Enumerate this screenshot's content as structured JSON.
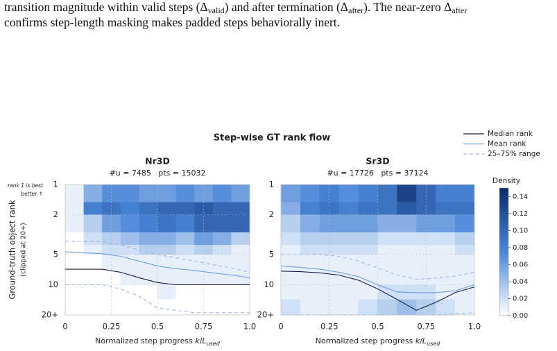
{
  "caption": [
    "transition magnitude within valid steps (Δ",
    "valid",
    ") and after termination (Δ",
    "after",
    "). The near-zero Δ",
    "after",
    "confirms step-length masking makes padded steps behaviorally inert."
  ],
  "chart_data": {
    "type": "heatmap-lines",
    "title": "Step-wise GT rank flow",
    "ylabel": "Ground-truth object rank",
    "ylabel_note": "(clipped at 20+)",
    "annotation": [
      "rank 1 is best",
      "better ↑"
    ],
    "xlabel": [
      "Normalized step progress ",
      "k",
      "/",
      "L",
      "used"
    ],
    "xlim": [
      0,
      1
    ],
    "xticks": [
      0,
      0.25,
      0.5,
      0.75,
      {
        "value": 1,
        "label": "1.0"
      }
    ],
    "ylim": [
      1,
      20
    ],
    "log_y": true,
    "yticks": [
      1,
      2,
      5,
      10,
      {
        "value": 20,
        "label": "20+"
      }
    ],
    "grid": true,
    "styles": {
      "median": {
        "name": "Median rank",
        "color": "#1b1d4a",
        "dash": "none"
      },
      "mean": {
        "name": "Mean rank",
        "color": "#6b9be0",
        "dash": "none"
      },
      "range": {
        "name": "25–75% range",
        "color": "#9db4e0",
        "dash": "5,4"
      }
    },
    "xbins": [
      0,
      0.1,
      0.2,
      0.3,
      0.4,
      0.5,
      0.6,
      0.7,
      0.8,
      0.9,
      1
    ],
    "ybins": [
      1,
      1.5,
      2,
      3,
      4,
      5,
      7,
      10,
      14,
      20
    ],
    "colorbar": {
      "label": "Density",
      "lim": [
        0,
        0.15
      ],
      "cmap": [
        "#ffffff",
        "#4a86d8",
        "#0a2a6b"
      ],
      "ticks": [
        {
          "value": 0,
          "label": "0.00"
        },
        0.02,
        0.04,
        0.06,
        0.08,
        {
          "value": 0.1,
          "label": "0.10"
        },
        0.12,
        0.14
      ]
    },
    "panels": [
      {
        "title": "Nr3D",
        "subtitle": "#u = 7485   pts = 15032",
        "x": [
          0,
          0.1,
          0.2,
          0.3,
          0.4,
          0.5,
          0.6,
          0.7,
          0.8,
          0.9,
          1
        ],
        "median": [
          7,
          7,
          7,
          7.5,
          8.5,
          9.5,
          10,
          10,
          10,
          10,
          10
        ],
        "mean": [
          4.7,
          4.8,
          4.9,
          5.2,
          5.8,
          6.5,
          6.9,
          7.2,
          7.6,
          8,
          8.5
        ],
        "range_high": [
          3.7,
          3.7,
          3.7,
          4,
          4.5,
          5,
          5.4,
          5.8,
          6.3,
          6.8,
          7.5
        ],
        "range_low": [
          10,
          10,
          10,
          11,
          13,
          17,
          18,
          19,
          19,
          19,
          19
        ],
        "density": [
          [
            0.01,
            0.05,
            0.07,
            0.07,
            0.06,
            0.06,
            0.07,
            0.06,
            0.07,
            0.06
          ],
          [
            0.01,
            0.08,
            0.09,
            0.08,
            0.09,
            0.1,
            0.1,
            0.11,
            0.1,
            0.1
          ],
          [
            0.01,
            0.03,
            0.06,
            0.07,
            0.08,
            0.09,
            0.08,
            0.1,
            0.1,
            0.1
          ],
          [
            0,
            0.02,
            0.03,
            0.04,
            0.05,
            0.05,
            0.04,
            0.06,
            0.05,
            0.03
          ],
          [
            0,
            0.01,
            0.02,
            0.02,
            0.03,
            0.03,
            0.02,
            0.03,
            0.02,
            0.01
          ],
          [
            0,
            0,
            0.01,
            0.01,
            0.01,
            0.01,
            0.01,
            0.01,
            0.01,
            0.01
          ],
          [
            0,
            0,
            0,
            0.01,
            0.01,
            0.01,
            0.01,
            0.01,
            0.01,
            0.01
          ],
          [
            0,
            0,
            0,
            0,
            0,
            0.01,
            0,
            0,
            0,
            0
          ],
          [
            0,
            0,
            0,
            0,
            0,
            0,
            0,
            0,
            0,
            0
          ]
        ]
      },
      {
        "title": "Sr3D",
        "subtitle": "#u = 17726   pts = 37124",
        "x": [
          0,
          0.1,
          0.2,
          0.3,
          0.4,
          0.5,
          0.6,
          0.7,
          0.8,
          0.9,
          1
        ],
        "median": [
          7.3,
          7.4,
          7.6,
          8,
          9,
          11,
          14,
          18,
          15,
          12,
          10.5
        ],
        "mean": [
          6.5,
          6.7,
          7,
          7.5,
          8.3,
          10,
          11.8,
          12,
          12,
          11.5,
          10
        ],
        "range_high": [
          5,
          5,
          5,
          5.2,
          5.8,
          6.8,
          8,
          8.8,
          8.6,
          8.2,
          7.5
        ],
        "range_low": [
          20,
          20,
          20,
          20,
          20,
          20,
          20,
          20,
          20,
          19.5,
          19
        ],
        "density": [
          [
            0.06,
            0.07,
            0.08,
            0.07,
            0.08,
            0.09,
            0.13,
            0.1,
            0.08,
            0.08
          ],
          [
            0.05,
            0.08,
            0.09,
            0.08,
            0.09,
            0.09,
            0.11,
            0.1,
            0.09,
            0.09
          ],
          [
            0.03,
            0.05,
            0.06,
            0.06,
            0.06,
            0.05,
            0.05,
            0.06,
            0.06,
            0.07
          ],
          [
            0.02,
            0.03,
            0.03,
            0.03,
            0.03,
            0.02,
            0.02,
            0.02,
            0.02,
            0.03
          ],
          [
            0.01,
            0.02,
            0.02,
            0.02,
            0.02,
            0.01,
            0.01,
            0.01,
            0.01,
            0.02
          ],
          [
            0.01,
            0.01,
            0.01,
            0.01,
            0.01,
            0.01,
            0.01,
            0.01,
            0.01,
            0.01
          ],
          [
            0.01,
            0.01,
            0.01,
            0.01,
            0.01,
            0.01,
            0.01,
            0.01,
            0.01,
            0.01
          ],
          [
            0.01,
            0.01,
            0.01,
            0.01,
            0.01,
            0.02,
            0.02,
            0.02,
            0.01,
            0.01
          ],
          [
            0.02,
            0.01,
            0.01,
            0.01,
            0.02,
            0.03,
            0.04,
            0.03,
            0.02,
            0.01
          ]
        ]
      }
    ]
  }
}
